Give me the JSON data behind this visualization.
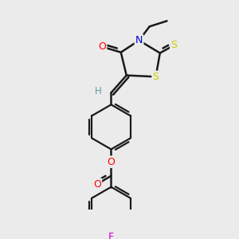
{
  "background_color": "#ebebeb",
  "bond_color": "#1a1a1a",
  "atom_colors": {
    "O": "#ff0000",
    "N": "#0000cc",
    "S": "#cccc00",
    "F": "#cc00cc",
    "H": "#5f9ea0",
    "C": "#1a1a1a"
  },
  "figsize": [
    3.0,
    3.0
  ],
  "dpi": 100
}
